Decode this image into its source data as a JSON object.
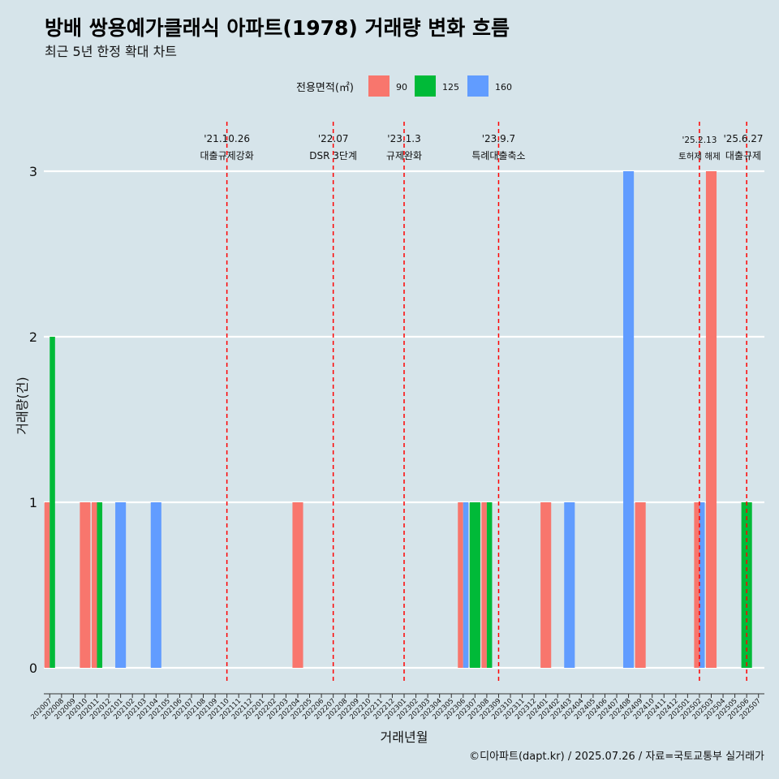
{
  "chart_data": {
    "type": "bar",
    "title": "방배 쌍용예가클래식 아파트(1978) 거래량 변화 흐름",
    "subtitle": "최근 5년 한정 확대 차트",
    "xlabel": "거래년월",
    "ylabel": "거래량(건)",
    "ylim": [
      0,
      3
    ],
    "yticks": [
      0,
      1,
      2,
      3
    ],
    "grid": "horizontal",
    "legend_position": "top",
    "legend": {
      "title": "전용면적(㎡)",
      "entries": [
        {
          "name": "90",
          "color": "#f8766d"
        },
        {
          "name": "125",
          "color": "#00ba38"
        },
        {
          "name": "160",
          "color": "#619cff"
        }
      ]
    },
    "categories": [
      "202007",
      "202008",
      "202009",
      "202010",
      "202011",
      "202012",
      "202101",
      "202102",
      "202103",
      "202104",
      "202105",
      "202106",
      "202107",
      "202108",
      "202109",
      "202110",
      "202111",
      "202112",
      "202201",
      "202202",
      "202203",
      "202204",
      "202205",
      "202206",
      "202207",
      "202208",
      "202209",
      "202210",
      "202211",
      "202212",
      "202301",
      "202302",
      "202303",
      "202304",
      "202305",
      "202306",
      "202307",
      "202308",
      "202309",
      "202310",
      "202311",
      "202312",
      "202401",
      "202402",
      "202403",
      "202404",
      "202405",
      "202406",
      "202407",
      "202408",
      "202409",
      "202410",
      "202411",
      "202412",
      "202501",
      "202502",
      "202503",
      "202504",
      "202505",
      "202506",
      "202507"
    ],
    "bars": [
      {
        "month": "202007",
        "series": [
          "90",
          "125"
        ],
        "values": [
          1,
          2
        ]
      },
      {
        "month": "202010",
        "series": [
          "90"
        ],
        "values": [
          1
        ]
      },
      {
        "month": "202011",
        "series": [
          "90",
          "125"
        ],
        "values": [
          1,
          1
        ]
      },
      {
        "month": "202101",
        "series": [
          "160"
        ],
        "values": [
          1
        ]
      },
      {
        "month": "202104",
        "series": [
          "160"
        ],
        "values": [
          1
        ]
      },
      {
        "month": "202204",
        "series": [
          "90"
        ],
        "values": [
          1
        ]
      },
      {
        "month": "202306",
        "series": [
          "90",
          "160"
        ],
        "values": [
          1,
          1
        ]
      },
      {
        "month": "202307",
        "series": [
          "125"
        ],
        "values": [
          1
        ]
      },
      {
        "month": "202308",
        "series": [
          "90",
          "125"
        ],
        "values": [
          1,
          1
        ]
      },
      {
        "month": "202401",
        "series": [
          "90"
        ],
        "values": [
          1
        ]
      },
      {
        "month": "202403",
        "series": [
          "160"
        ],
        "values": [
          1
        ]
      },
      {
        "month": "202408",
        "series": [
          "160"
        ],
        "values": [
          3
        ]
      },
      {
        "month": "202409",
        "series": [
          "90"
        ],
        "values": [
          1
        ]
      },
      {
        "month": "202502",
        "series": [
          "90",
          "160"
        ],
        "values": [
          1,
          1
        ]
      },
      {
        "month": "202503",
        "series": [
          "90"
        ],
        "values": [
          3
        ]
      },
      {
        "month": "202506",
        "series": [
          "125"
        ],
        "values": [
          1
        ]
      }
    ],
    "events": [
      {
        "month": "202110",
        "date": "'21.10.26",
        "label": "대출규제강화"
      },
      {
        "month": "202207",
        "date": "'22.07",
        "label": "DSR 3단계"
      },
      {
        "month": "202301",
        "date": "'23.1.3",
        "label": "규제완화"
      },
      {
        "month": "202309",
        "date": "'23.9.7",
        "label": "특례대출축소"
      },
      {
        "month": "202502",
        "date": "'25.2.13",
        "label": "토허제 해제"
      },
      {
        "month": "202506",
        "date": "'25.6.27",
        "label": "대출규제"
      }
    ],
    "event_color": "#ff0000"
  },
  "caption": "©디아파트(dapt.kr) / 2025.07.26 / 자료=국토교통부 실거래가"
}
